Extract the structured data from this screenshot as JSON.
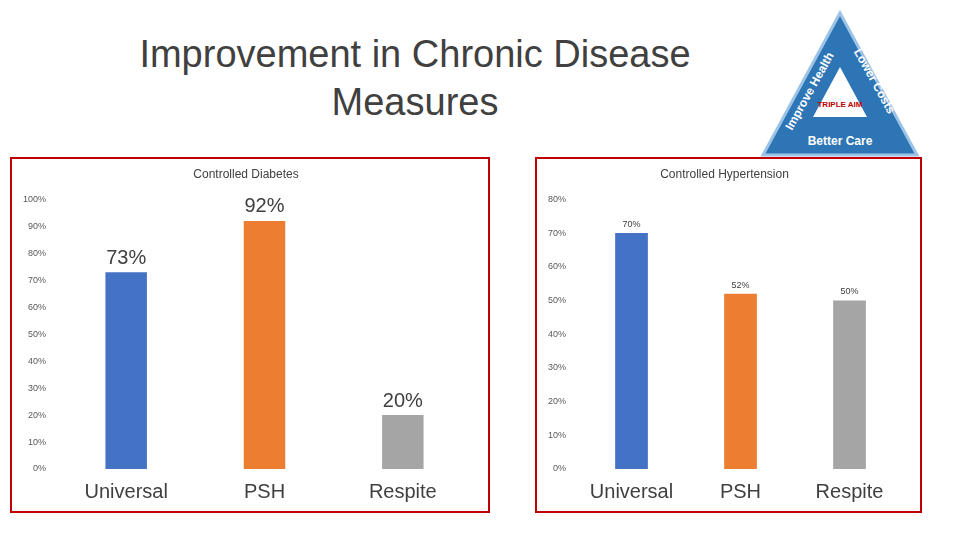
{
  "title": "Improvement in Chronic Disease Measures",
  "logo": {
    "center": "TRIPLE AIM",
    "sides": [
      "Improve Health",
      "Lower Costs",
      "Better Care"
    ]
  },
  "chart_data": [
    {
      "type": "bar",
      "title": "Controlled Diabetes",
      "categories": [
        "Universal",
        "PSH",
        "Respite"
      ],
      "values": [
        73,
        92,
        20
      ],
      "value_labels": [
        "73%",
        "92%",
        "20%"
      ],
      "colors": [
        "#4472c4",
        "#ed7d31",
        "#a5a5a5"
      ],
      "ylim": [
        0,
        100
      ],
      "yticks": [
        {
          "value": 0,
          "label": "0%"
        },
        {
          "value": 10,
          "label": "10%"
        },
        {
          "value": 20,
          "label": "20%"
        },
        {
          "value": 30,
          "label": "30%"
        },
        {
          "value": 40,
          "label": "40%"
        },
        {
          "value": 50,
          "label": "50%"
        },
        {
          "value": 60,
          "label": "60%"
        },
        {
          "value": 70,
          "label": "70%"
        },
        {
          "value": 80,
          "label": "80%"
        },
        {
          "value": 90,
          "label": "90%"
        },
        {
          "value": 100,
          "label": "100%"
        }
      ],
      "grid": false,
      "data_labels": true
    },
    {
      "type": "bar",
      "title": "Controlled Hypertension",
      "categories": [
        "Universal",
        "PSH",
        "Respite"
      ],
      "values": [
        70,
        52,
        50
      ],
      "value_labels": [
        "70%",
        "52%",
        "50%"
      ],
      "colors": [
        "#4472c4",
        "#ed7d31",
        "#a5a5a5"
      ],
      "ylim": [
        0,
        80
      ],
      "yticks": [
        {
          "value": 0,
          "label": "0%"
        },
        {
          "value": 10,
          "label": "10%"
        },
        {
          "value": 20,
          "label": "20%"
        },
        {
          "value": 30,
          "label": "30%"
        },
        {
          "value": 40,
          "label": "40%"
        },
        {
          "value": 50,
          "label": "50%"
        },
        {
          "value": 60,
          "label": "60%"
        },
        {
          "value": 70,
          "label": "70%"
        },
        {
          "value": 80,
          "label": "80%"
        }
      ],
      "grid": false,
      "data_labels": true
    }
  ]
}
